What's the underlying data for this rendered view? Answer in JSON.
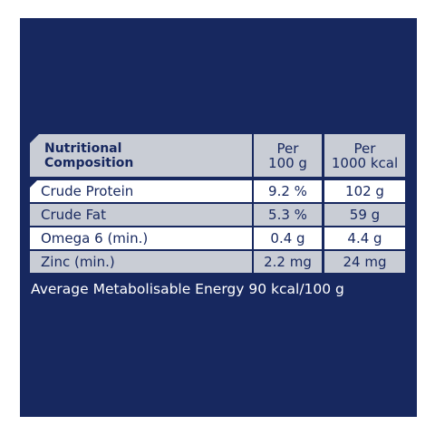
{
  "table": {
    "header": [
      [
        "Nutritional",
        "Composition"
      ],
      [
        "Per",
        "100 g"
      ],
      [
        "Per",
        "1000 kcal"
      ]
    ],
    "rows": [
      [
        "Crude Protein",
        "9.2 %",
        "102 g"
      ],
      [
        "Crude Fat",
        "5.3 %",
        "59 g"
      ],
      [
        "Omega 6 (min.)",
        "0.4 g",
        "4.4 g"
      ],
      [
        "Zinc (min.)",
        "2.2 mg",
        "24 mg"
      ]
    ]
  },
  "footer": "Average Metabolisable Energy 90 kcal/100 g"
}
